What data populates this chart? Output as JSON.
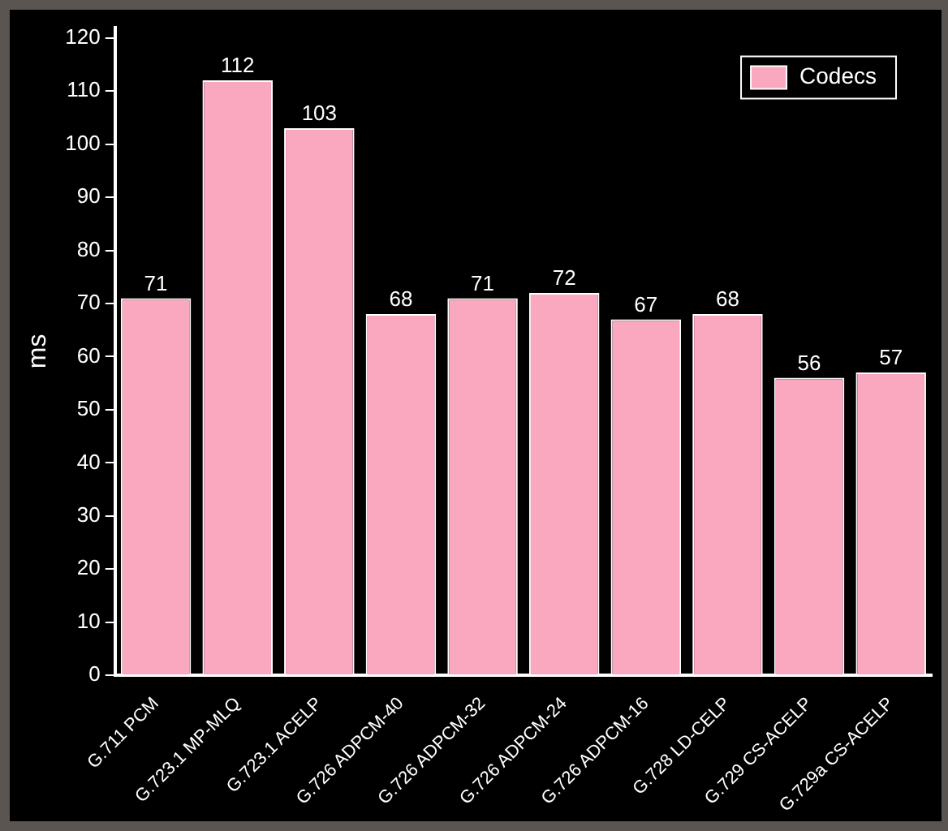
{
  "chart_data": {
    "type": "bar",
    "categories": [
      "G.711 PCM",
      "G.723.1 MP-MLQ",
      "G.723.1 ACELP",
      "G.726 ADPCM-40",
      "G.726 ADPCM-32",
      "G.726 ADPCM-24",
      "G.726 ADPCM-16",
      "G.728 LD-CELP",
      "G.729 CS-ACELP",
      "G.729a CS-ACELP"
    ],
    "series": [
      {
        "name": "Codecs",
        "color": "#f9a8c0",
        "values": [
          71,
          112,
          103,
          68,
          71,
          72,
          67,
          68,
          56,
          57
        ]
      }
    ],
    "ylabel": "ms",
    "ylim": [
      0,
      122
    ],
    "yticks": [
      0,
      10,
      20,
      30,
      40,
      50,
      60,
      70,
      80,
      90,
      100,
      110,
      120
    ],
    "data_labels": true,
    "legend": "top right",
    "grid": false
  }
}
